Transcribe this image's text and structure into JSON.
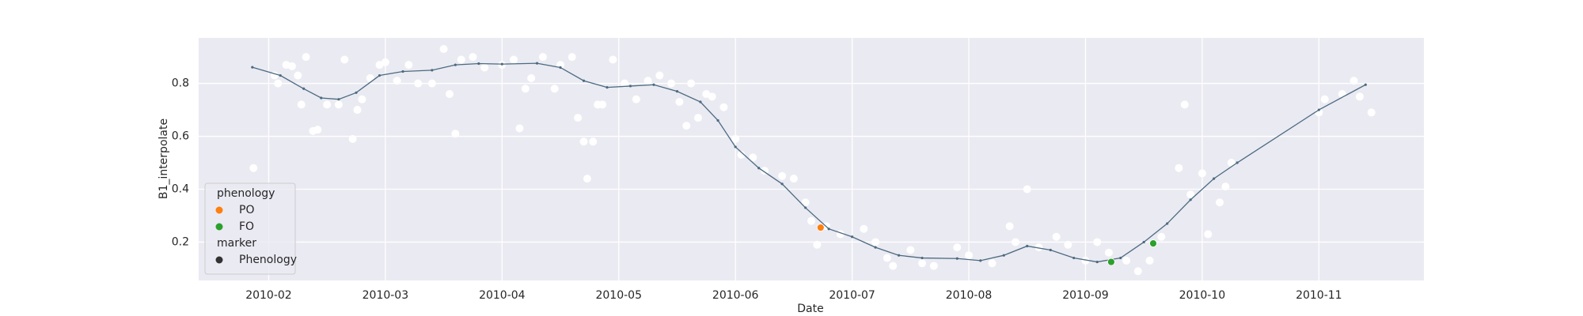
{
  "chart_data": {
    "type": "scatter",
    "xlabel": "Date",
    "ylabel": "B1_interpolate",
    "xlim": [
      1.4,
      11.9
    ],
    "xticks": [
      {
        "value": 2,
        "label": "2010-02"
      },
      {
        "value": 3,
        "label": "2010-03"
      },
      {
        "value": 4,
        "label": "2010-04"
      },
      {
        "value": 5,
        "label": "2010-05"
      },
      {
        "value": 6,
        "label": "2010-06"
      },
      {
        "value": 7,
        "label": "2010-07"
      },
      {
        "value": 8,
        "label": "2010-08"
      },
      {
        "value": 9,
        "label": "2010-09"
      },
      {
        "value": 10,
        "label": "2010-10"
      },
      {
        "value": 11,
        "label": "2010-11"
      }
    ],
    "ylim": [
      0.055,
      0.972
    ],
    "yticks": [
      0.2,
      0.4,
      0.6,
      0.8
    ],
    "grid": true,
    "background": "#eaeaf2",
    "legend": {
      "title": "phenology",
      "subtitle": "marker",
      "marker_label": "Phenology",
      "marker_color": "#333333",
      "position": "lower left"
    },
    "series": [
      {
        "type": "scatter",
        "color": "#ffffff",
        "x": [
          1.87,
          2.05,
          2.08,
          2.15,
          2.2,
          2.25,
          2.28,
          2.32,
          2.38,
          2.42,
          2.5,
          2.6,
          2.65,
          2.72,
          2.76,
          2.8,
          2.87,
          2.95,
          3.0,
          3.1,
          3.2,
          3.28,
          3.4,
          3.5,
          3.55,
          3.6,
          3.65,
          3.75,
          3.85,
          4.0,
          4.1,
          4.15,
          4.2,
          4.25,
          4.35,
          4.45,
          4.5,
          4.6,
          4.65,
          4.7,
          4.73,
          4.78,
          4.82,
          4.86,
          4.95,
          5.05,
          5.15,
          5.25,
          5.35,
          5.45,
          5.52,
          5.58,
          5.62,
          5.68,
          5.75,
          5.8,
          5.9,
          6.0,
          6.05,
          6.15,
          6.25,
          6.4,
          6.5,
          6.6,
          6.65,
          6.7,
          6.78,
          6.9,
          7.1,
          7.2,
          7.3,
          7.35,
          7.5,
          7.6,
          7.7,
          7.9,
          8.0,
          8.2,
          8.35,
          8.4,
          8.5,
          8.6,
          8.75,
          8.85,
          9.0,
          9.1,
          9.2,
          9.35,
          9.45,
          9.55,
          9.65,
          9.8,
          9.85,
          9.9,
          10.0,
          10.05,
          10.15,
          10.2,
          10.25,
          11.0,
          11.05,
          11.2,
          11.3,
          11.35,
          11.45
        ],
        "y": [
          0.48,
          0.83,
          0.8,
          0.87,
          0.865,
          0.83,
          0.72,
          0.9,
          0.62,
          0.625,
          0.72,
          0.72,
          0.89,
          0.59,
          0.7,
          0.74,
          0.82,
          0.87,
          0.88,
          0.81,
          0.87,
          0.8,
          0.8,
          0.93,
          0.76,
          0.61,
          0.89,
          0.9,
          0.86,
          0.87,
          0.89,
          0.63,
          0.78,
          0.82,
          0.9,
          0.78,
          0.87,
          0.9,
          0.67,
          0.58,
          0.44,
          0.58,
          0.72,
          0.72,
          0.89,
          0.8,
          0.74,
          0.81,
          0.83,
          0.8,
          0.73,
          0.64,
          0.8,
          0.67,
          0.76,
          0.75,
          0.71,
          0.59,
          0.53,
          0.52,
          0.47,
          0.45,
          0.44,
          0.35,
          0.28,
          0.19,
          0.26,
          0.23,
          0.25,
          0.2,
          0.14,
          0.11,
          0.17,
          0.12,
          0.11,
          0.18,
          0.15,
          0.12,
          0.26,
          0.2,
          0.4,
          0.18,
          0.22,
          0.19,
          0.13,
          0.2,
          0.16,
          0.13,
          0.09,
          0.13,
          0.22,
          0.48,
          0.72,
          0.38,
          0.46,
          0.23,
          0.35,
          0.41,
          0.5,
          0.69,
          0.74,
          0.76,
          0.81,
          0.75,
          0.69
        ]
      },
      {
        "type": "line",
        "color": "#4c6a80",
        "x": [
          1.86,
          2.1,
          2.3,
          2.45,
          2.6,
          2.75,
          2.95,
          3.15,
          3.4,
          3.6,
          3.8,
          4.0,
          4.3,
          4.5,
          4.7,
          4.9,
          5.1,
          5.3,
          5.5,
          5.7,
          5.85,
          6.0,
          6.2,
          6.4,
          6.6,
          6.8,
          7.0,
          7.2,
          7.4,
          7.6,
          7.9,
          8.1,
          8.3,
          8.5,
          8.7,
          8.9,
          9.1,
          9.3,
          9.5,
          9.7,
          9.9,
          10.1,
          10.3,
          11.0,
          11.4
        ],
        "y": [
          0.861,
          0.83,
          0.78,
          0.745,
          0.74,
          0.765,
          0.83,
          0.845,
          0.85,
          0.87,
          0.875,
          0.873,
          0.876,
          0.86,
          0.81,
          0.785,
          0.79,
          0.795,
          0.77,
          0.73,
          0.66,
          0.56,
          0.48,
          0.42,
          0.33,
          0.25,
          0.22,
          0.18,
          0.15,
          0.14,
          0.138,
          0.13,
          0.15,
          0.185,
          0.17,
          0.14,
          0.125,
          0.14,
          0.2,
          0.27,
          0.36,
          0.44,
          0.5,
          0.7,
          0.795
        ]
      },
      {
        "type": "scatter",
        "name": "PO",
        "color": "#ff7f0e",
        "x": [
          6.73
        ],
        "y": [
          0.255
        ]
      },
      {
        "type": "scatter",
        "name": "FO",
        "color": "#2ca02c",
        "x": [
          9.22,
          9.58
        ],
        "y": [
          0.125,
          0.195
        ]
      }
    ]
  }
}
